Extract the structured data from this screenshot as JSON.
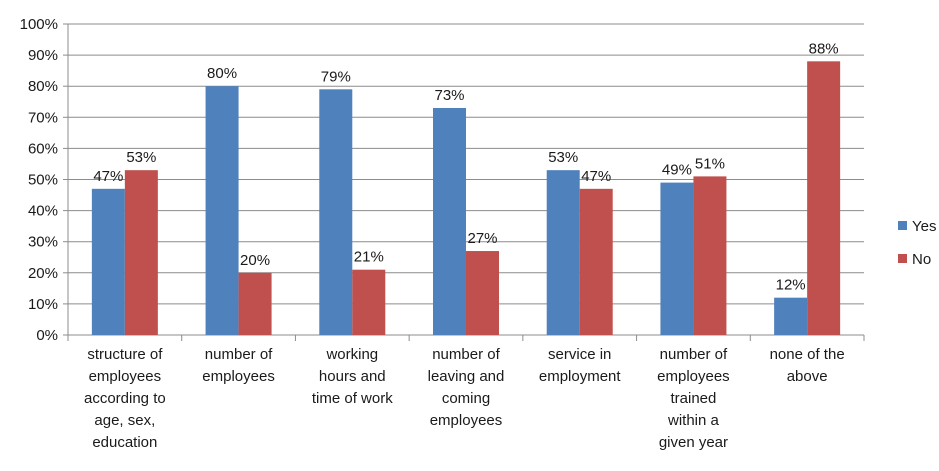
{
  "chart_data": {
    "type": "bar",
    "categories": [
      [
        "structure of",
        "employees",
        "according to",
        "age, sex,",
        "education"
      ],
      [
        "number of",
        "employees"
      ],
      [
        "working",
        "hours and",
        "time of work"
      ],
      [
        "number of",
        "leaving and",
        "coming",
        "employees"
      ],
      [
        "service in",
        "employment"
      ],
      [
        "number of",
        "employees",
        "trained",
        "within a",
        "given year"
      ],
      [
        "none of the",
        "above"
      ]
    ],
    "series": [
      {
        "name": "Yes",
        "color": "#4f81bd",
        "values": [
          47,
          80,
          79,
          73,
          53,
          49,
          12
        ],
        "labels": [
          "47%",
          "80%",
          "79%",
          "73%",
          "53%",
          "49%",
          "12%"
        ]
      },
      {
        "name": "No",
        "color": "#c0504d",
        "values": [
          53,
          20,
          21,
          27,
          47,
          51,
          88
        ],
        "labels": [
          "53%",
          "20%",
          "21%",
          "27%",
          "47%",
          "51%",
          "88%"
        ]
      }
    ],
    "yticks": [
      "0%",
      "10%",
      "20%",
      "30%",
      "40%",
      "50%",
      "60%",
      "70%",
      "80%",
      "90%",
      "100%"
    ],
    "ylim": [
      0,
      100
    ],
    "grid": true,
    "legend_position": "right",
    "title": "",
    "xlabel": "",
    "ylabel": ""
  }
}
